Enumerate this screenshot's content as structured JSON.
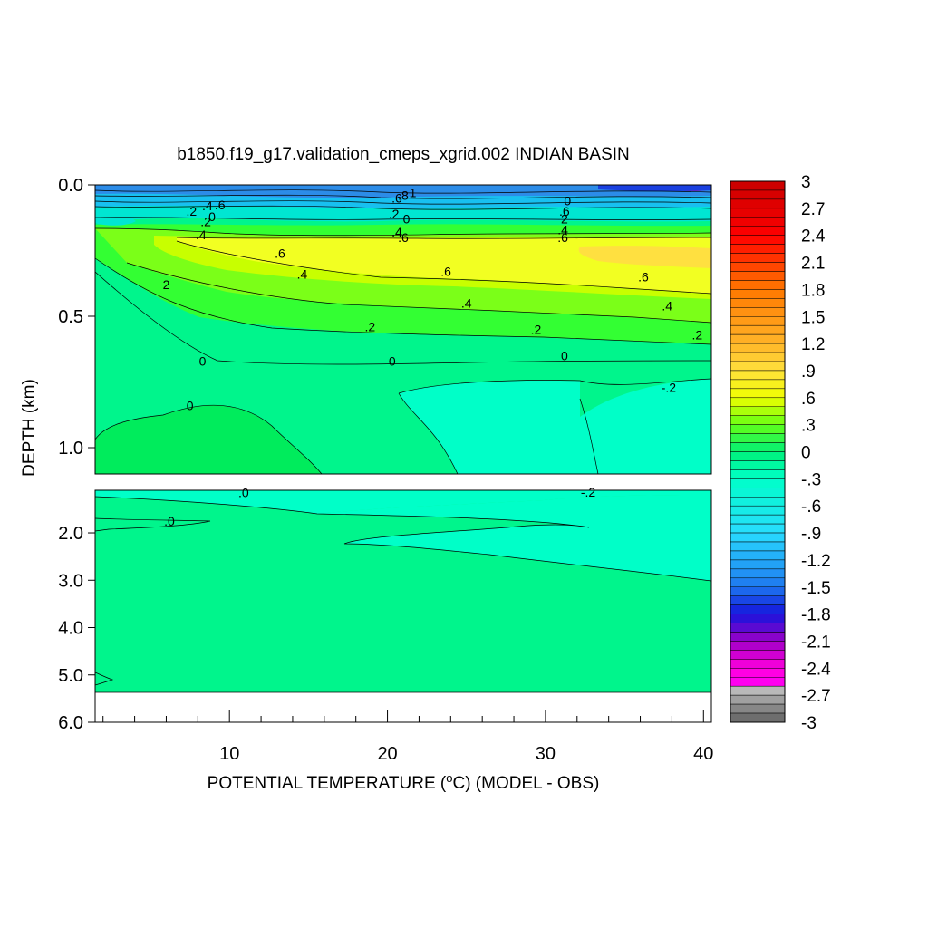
{
  "chart_data": {
    "type": "heatmap",
    "title": "b1850.f19_g17.validation_cmeps_xgrid.002 INDIAN BASIN",
    "xlabel": {
      "prefix": "POTENTIAL TEMPERATURE (",
      "sup": "o",
      "suffix": "C) (MODEL - OBS)"
    },
    "ylabel": "DEPTH (km)",
    "xlim": [
      1.5,
      40.5
    ],
    "x_ticks": [
      "10",
      "20",
      "30",
      "40"
    ],
    "x_tick_values": [
      10,
      20,
      30,
      40
    ],
    "upper_panel": {
      "ylim": [
        0.0,
        1.1
      ],
      "y_ticks": [
        "0.0",
        "0.5",
        "1.0"
      ],
      "y_tick_values": [
        0.0,
        0.5,
        1.0
      ]
    },
    "lower_panel": {
      "ylim": [
        1.1,
        6.0
      ],
      "y_ticks": [
        "2.0",
        "3.0",
        "4.0",
        "5.0",
        "6.0"
      ],
      "y_tick_values": [
        2.0,
        3.0,
        4.0,
        5.0,
        6.0
      ],
      "data_bottom_depth": 5.35
    },
    "colorbar": {
      "min": -3.0,
      "max": 3.0,
      "labels": [
        "3",
        "2.7",
        "2.4",
        "2.1",
        "1.8",
        "1.5",
        "1.2",
        ".9",
        ".6",
        ".3",
        "0",
        "-.3",
        "-.6",
        "-.9",
        "-1.2",
        "-1.5",
        "-1.8",
        "-2.1",
        "-2.4",
        "-2.7",
        "-3"
      ],
      "label_values": [
        3,
        2.7,
        2.4,
        2.1,
        1.8,
        1.5,
        1.2,
        0.9,
        0.6,
        0.3,
        0,
        -0.3,
        -0.6,
        -0.9,
        -1.2,
        -1.5,
        -1.8,
        -2.1,
        -2.4,
        -2.7,
        -3
      ]
    },
    "contour_labels": [
      {
        "text": ".2",
        "x": 7.6,
        "depth": 0.1
      },
      {
        "text": ".4",
        "x": 8.6,
        "depth": 0.08
      },
      {
        "text": ".6",
        "x": 9.4,
        "depth": 0.075
      },
      {
        "text": "0",
        "x": 8.9,
        "depth": 0.12
      },
      {
        "text": ".2",
        "x": 8.5,
        "depth": 0.14
      },
      {
        "text": ".4",
        "x": 8.2,
        "depth": 0.19
      },
      {
        "text": ".6",
        "x": 13.2,
        "depth": 0.26
      },
      {
        "text": ".4",
        "x": 14.6,
        "depth": 0.34
      },
      {
        "text": "2",
        "x": 6.0,
        "depth": 0.38
      },
      {
        "text": ".6",
        "x": 23.7,
        "depth": 0.33
      },
      {
        "text": ".4",
        "x": 25.0,
        "depth": 0.45
      },
      {
        "text": ".2",
        "x": 18.9,
        "depth": 0.54
      },
      {
        "text": ".6",
        "x": 36.2,
        "depth": 0.35
      },
      {
        "text": ".4",
        "x": 37.7,
        "depth": 0.46
      },
      {
        "text": ".2",
        "x": 29.4,
        "depth": 0.55
      },
      {
        "text": ".2",
        "x": 39.6,
        "depth": 0.57
      },
      {
        "text": "0",
        "x": 8.3,
        "depth": 0.67
      },
      {
        "text": "0",
        "x": 20.3,
        "depth": 0.67
      },
      {
        "text": "0",
        "x": 31.2,
        "depth": 0.65
      },
      {
        "text": "-.2",
        "x": 37.8,
        "depth": 0.77
      },
      {
        "text": "0",
        "x": 7.5,
        "depth": 0.84
      },
      {
        "text": ".6",
        "x": 20.6,
        "depth": 0.05
      },
      {
        "text": ".8",
        "x": 21.0,
        "depth": 0.04
      },
      {
        "text": "1",
        "x": 21.6,
        "depth": 0.03
      },
      {
        "text": ".2",
        "x": 20.4,
        "depth": 0.11
      },
      {
        "text": "0",
        "x": 21.2,
        "depth": 0.13
      },
      {
        "text": ".4",
        "x": 20.6,
        "depth": 0.18
      },
      {
        "text": ".6",
        "x": 21.0,
        "depth": 0.2
      },
      {
        "text": "0",
        "x": 31.4,
        "depth": 0.06
      },
      {
        "text": ".6",
        "x": 31.2,
        "depth": 0.1
      },
      {
        "text": "2",
        "x": 31.2,
        "depth": 0.13
      },
      {
        "text": ".4",
        "x": 31.1,
        "depth": 0.17
      },
      {
        "text": ".6",
        "x": 31.1,
        "depth": 0.2
      },
      {
        "text": ".0",
        "x": 10.9,
        "depth": 1.15
      },
      {
        "text": ".0",
        "x": 6.2,
        "depth": 1.75
      },
      {
        "text": "-.2",
        "x": 32.7,
        "depth": 1.14
      }
    ]
  }
}
